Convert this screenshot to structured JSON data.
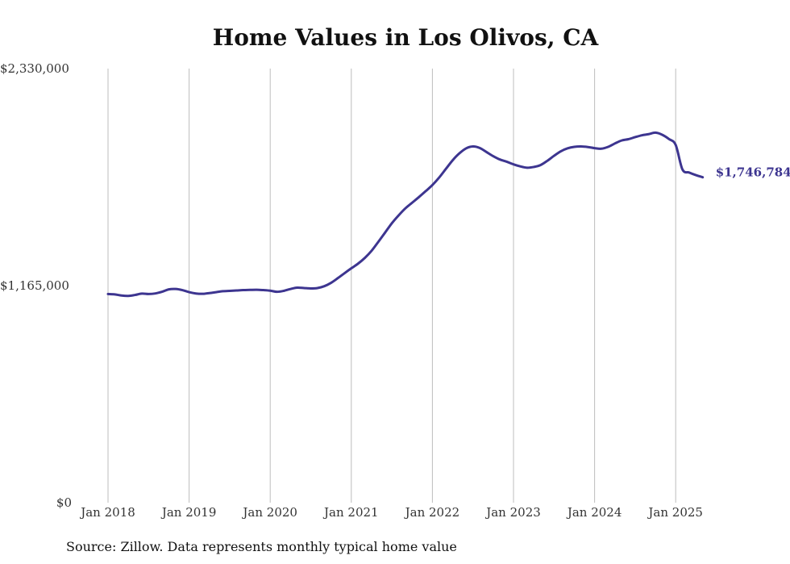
{
  "chart_data": {
    "type": "line",
    "title": "Home Values in Los Olivos, CA",
    "source": "Source: Zillow. Data represents monthly typical home value",
    "ylim": [
      0,
      2330000
    ],
    "yticks": [
      {
        "value": 0,
        "label": "$0"
      },
      {
        "value": 1165000,
        "label": "$1,165,000"
      },
      {
        "value": 2330000,
        "label": "$2,330,000"
      }
    ],
    "xlim": [
      2018.0,
      2025.333
    ],
    "xticks": [
      {
        "value": 2018,
        "label": "Jan 2018"
      },
      {
        "value": 2019,
        "label": "Jan 2019"
      },
      {
        "value": 2020,
        "label": "Jan 2020"
      },
      {
        "value": 2021,
        "label": "Jan 2021"
      },
      {
        "value": 2022,
        "label": "Jan 2022"
      },
      {
        "value": 2023,
        "label": "Jan 2023"
      },
      {
        "value": 2024,
        "label": "Jan 2024"
      },
      {
        "value": 2025,
        "label": "Jan 2025"
      }
    ],
    "grid": "vertical",
    "line_color": "#3d3590",
    "end_label": "$1,746,784",
    "series": [
      {
        "x": [
          2018.0,
          2018.083,
          2018.167,
          2018.25,
          2018.333,
          2018.417,
          2018.5,
          2018.583,
          2018.667,
          2018.75,
          2018.833,
          2018.917,
          2019.0,
          2019.083,
          2019.167,
          2019.25,
          2019.333,
          2019.417,
          2019.5,
          2019.583,
          2019.667,
          2019.75,
          2019.833,
          2019.917,
          2020.0,
          2020.083,
          2020.167,
          2020.25,
          2020.333,
          2020.417,
          2020.5,
          2020.583,
          2020.667,
          2020.75,
          2020.833,
          2020.917,
          2021.0,
          2021.083,
          2021.167,
          2021.25,
          2021.333,
          2021.417,
          2021.5,
          2021.583,
          2021.667,
          2021.75,
          2021.833,
          2021.917,
          2022.0,
          2022.083,
          2022.167,
          2022.25,
          2022.333,
          2022.417,
          2022.5,
          2022.583,
          2022.667,
          2022.75,
          2022.833,
          2022.917,
          2023.0,
          2023.083,
          2023.167,
          2023.25,
          2023.333,
          2023.417,
          2023.5,
          2023.583,
          2023.667,
          2023.75,
          2023.833,
          2023.917,
          2024.0,
          2024.083,
          2024.167,
          2024.25,
          2024.333,
          2024.417,
          2024.5,
          2024.583,
          2024.667,
          2024.75,
          2024.833,
          2024.917,
          2025.0,
          2025.083,
          2025.167,
          2025.25,
          2025.333
        ],
        "values": [
          1120000,
          1118000,
          1112000,
          1110000,
          1115000,
          1122000,
          1120000,
          1123000,
          1132000,
          1145000,
          1147000,
          1141000,
          1130000,
          1123000,
          1121000,
          1125000,
          1130000,
          1135000,
          1137000,
          1139000,
          1141000,
          1142000,
          1143000,
          1141000,
          1138000,
          1132000,
          1137000,
          1147000,
          1154000,
          1152000,
          1150000,
          1152000,
          1162000,
          1180000,
          1205000,
          1232000,
          1258000,
          1283000,
          1314000,
          1352000,
          1400000,
          1450000,
          1500000,
          1542000,
          1580000,
          1610000,
          1640000,
          1672000,
          1705000,
          1745000,
          1792000,
          1838000,
          1875000,
          1902000,
          1912000,
          1904000,
          1882000,
          1860000,
          1842000,
          1830000,
          1816000,
          1805000,
          1798000,
          1802000,
          1812000,
          1835000,
          1862000,
          1886000,
          1902000,
          1910000,
          1912000,
          1909000,
          1903000,
          1900000,
          1910000,
          1928000,
          1944000,
          1951000,
          1962000,
          1972000,
          1978000,
          1986000,
          1975000,
          1952000,
          1920000,
          1789000,
          1772000,
          1758000,
          1746784
        ]
      }
    ]
  }
}
